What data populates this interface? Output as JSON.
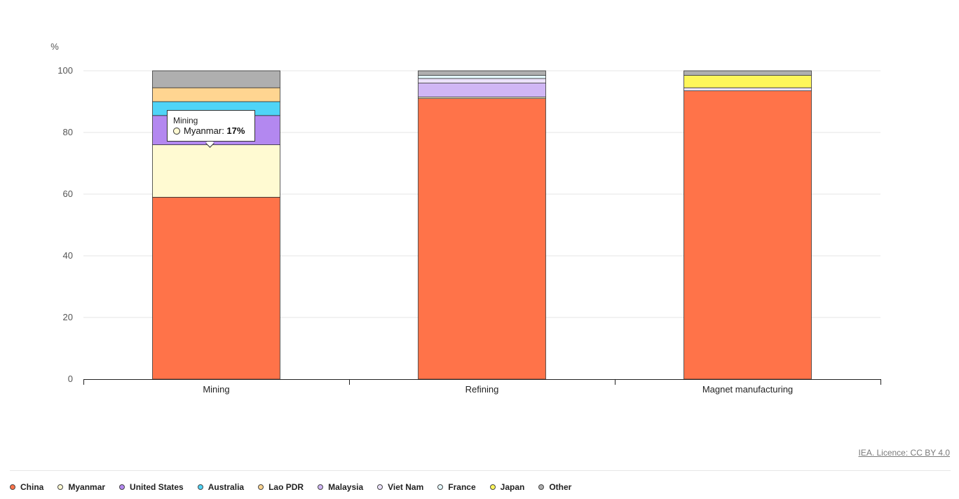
{
  "chart_data": {
    "type": "bar",
    "stacked": true,
    "ylabel": "%",
    "ylim": [
      0,
      100
    ],
    "yticks": [
      0,
      20,
      40,
      60,
      80,
      100
    ],
    "grid": true,
    "legend_position": "bottom",
    "categories": [
      "Mining",
      "Refining",
      "Magnet manufacturing"
    ],
    "series": [
      {
        "name": "China",
        "color": "#ff7349",
        "values": [
          59,
          91,
          93.5
        ]
      },
      {
        "name": "Myanmar",
        "color": "#fffad2",
        "values": [
          17,
          0.5,
          0
        ]
      },
      {
        "name": "United States",
        "color": "#b388f0",
        "values": [
          9.5,
          0,
          0
        ]
      },
      {
        "name": "Australia",
        "color": "#4fd4f7",
        "values": [
          4.5,
          0,
          0
        ]
      },
      {
        "name": "Lao PDR",
        "color": "#ffd591",
        "values": [
          4.5,
          0,
          0
        ]
      },
      {
        "name": "Malaysia",
        "color": "#d0b6f5",
        "values": [
          0,
          4.5,
          0
        ]
      },
      {
        "name": "Viet Nam",
        "color": "#ece2fb",
        "values": [
          0,
          1.5,
          1
        ]
      },
      {
        "name": "France",
        "color": "#e3f8fd",
        "values": [
          0,
          1,
          0
        ]
      },
      {
        "name": "Japan",
        "color": "#fef65a",
        "values": [
          0,
          0,
          4
        ]
      },
      {
        "name": "Other",
        "color": "#afafaf",
        "values": [
          5.5,
          1.5,
          1.5
        ]
      }
    ]
  },
  "tooltip": {
    "category": "Mining",
    "series": "Myanmar",
    "value": "17%",
    "color": "#fffad2"
  },
  "credit": "IEA. Licence: CC BY 4.0"
}
